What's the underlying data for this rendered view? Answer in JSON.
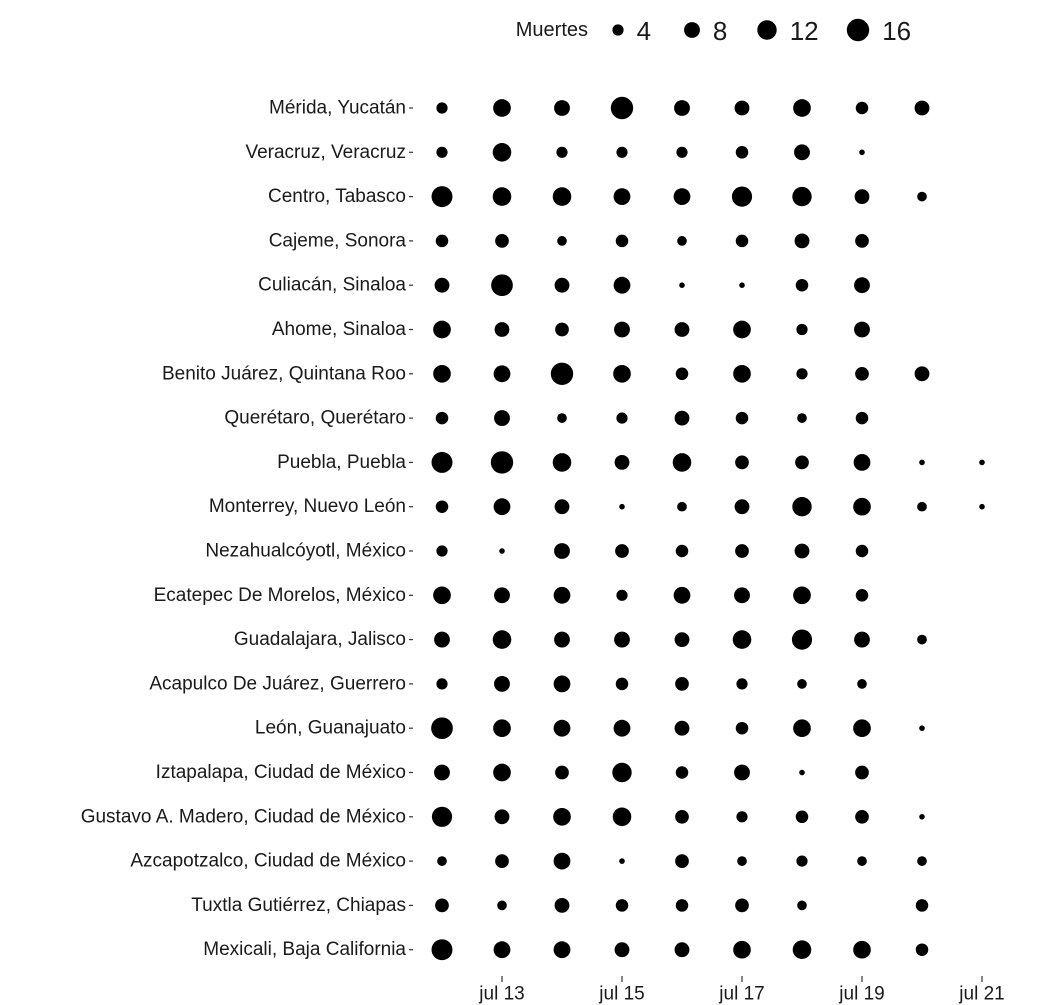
{
  "chart_data": {
    "type": "scatter",
    "title": "",
    "xlabel": "",
    "ylabel": "",
    "size_legend": {
      "title": "Muertes",
      "values": [
        4,
        8,
        12,
        16
      ],
      "labels": [
        "4",
        "8",
        "12",
        "16"
      ],
      "placement": "top"
    },
    "x": [
      "2020-07-12",
      "2020-07-13",
      "2020-07-14",
      "2020-07-15",
      "2020-07-16",
      "2020-07-17",
      "2020-07-18",
      "2020-07-19",
      "2020-07-20",
      "2020-07-21"
    ],
    "x_tick_labels": [
      {
        "date": "2020-07-13",
        "label": "jul 13"
      },
      {
        "date": "2020-07-15",
        "label": "jul 15"
      },
      {
        "date": "2020-07-17",
        "label": "jul 17"
      },
      {
        "date": "2020-07-19",
        "label": "jul 19"
      },
      {
        "date": "2020-07-21",
        "label": "jul 21"
      }
    ],
    "series": [
      {
        "category": "Mérida, Yucatán",
        "values": [
          4,
          10,
          8,
          16,
          8,
          7,
          10,
          5,
          7,
          null
        ]
      },
      {
        "category": "Veracruz, Veracruz",
        "values": [
          4,
          11,
          4,
          4,
          4,
          5,
          8,
          1,
          null,
          null
        ]
      },
      {
        "category": "Centro, Tabasco",
        "values": [
          14,
          11,
          11,
          9,
          9,
          13,
          12,
          7,
          3,
          null
        ]
      },
      {
        "category": "Cajeme, Sonora",
        "values": [
          5,
          6,
          3,
          5,
          3,
          5,
          7,
          6,
          null,
          null
        ]
      },
      {
        "category": "Culiacán, Sinaloa",
        "values": [
          7,
          15,
          7,
          9,
          1,
          1,
          5,
          8,
          null,
          null
        ]
      },
      {
        "category": "Ahome, Sinaloa",
        "values": [
          10,
          7,
          6,
          8,
          7,
          10,
          4,
          8,
          null,
          null
        ]
      },
      {
        "category": "Benito Juárez, Quintana Roo",
        "values": [
          10,
          9,
          16,
          10,
          5,
          10,
          4,
          6,
          7,
          null
        ]
      },
      {
        "category": "Querétaro, Querétaro",
        "values": [
          5,
          8,
          3,
          4,
          7,
          5,
          3,
          5,
          null,
          null
        ]
      },
      {
        "category": "Puebla, Puebla",
        "values": [
          14,
          16,
          11,
          7,
          11,
          6,
          6,
          9,
          1,
          1
        ]
      },
      {
        "category": "Monterrey, Nuevo León",
        "values": [
          5,
          9,
          7,
          1,
          3,
          7,
          12,
          10,
          3,
          1
        ]
      },
      {
        "category": "Nezahualcóyotl, México",
        "values": [
          4,
          1,
          8,
          6,
          5,
          6,
          7,
          5,
          null,
          null
        ]
      },
      {
        "category": "Ecatepec De Morelos, México",
        "values": [
          10,
          8,
          9,
          4,
          9,
          8,
          10,
          5,
          null,
          null
        ]
      },
      {
        "category": "Guadalajara, Jalisco",
        "values": [
          8,
          11,
          8,
          8,
          7,
          11,
          13,
          8,
          3,
          null
        ]
      },
      {
        "category": "Acapulco De Juárez, Guerrero",
        "values": [
          4,
          8,
          9,
          5,
          6,
          4,
          3,
          3,
          null,
          null
        ]
      },
      {
        "category": "León, Guanajuato",
        "values": [
          15,
          10,
          9,
          9,
          7,
          5,
          10,
          10,
          1,
          null
        ]
      },
      {
        "category": "Iztapalapa, Ciudad de México",
        "values": [
          8,
          10,
          6,
          12,
          5,
          8,
          1,
          6,
          null,
          null
        ]
      },
      {
        "category": "Gustavo A. Madero, Ciudad de México",
        "values": [
          13,
          7,
          10,
          11,
          6,
          4,
          5,
          6,
          1,
          null
        ]
      },
      {
        "category": "Azcapotzalco, Ciudad de México",
        "values": [
          3,
          6,
          9,
          1,
          6,
          3,
          4,
          3,
          3,
          null
        ]
      },
      {
        "category": "Tuxtla Gutiérrez, Chiapas",
        "values": [
          6,
          3,
          7,
          5,
          5,
          6,
          3,
          null,
          5,
          null
        ]
      },
      {
        "category": "Mexicali, Baja California",
        "values": [
          14,
          9,
          9,
          7,
          7,
          10,
          11,
          10,
          5,
          null
        ]
      }
    ],
    "grid": false,
    "dot_color": "#000000"
  }
}
